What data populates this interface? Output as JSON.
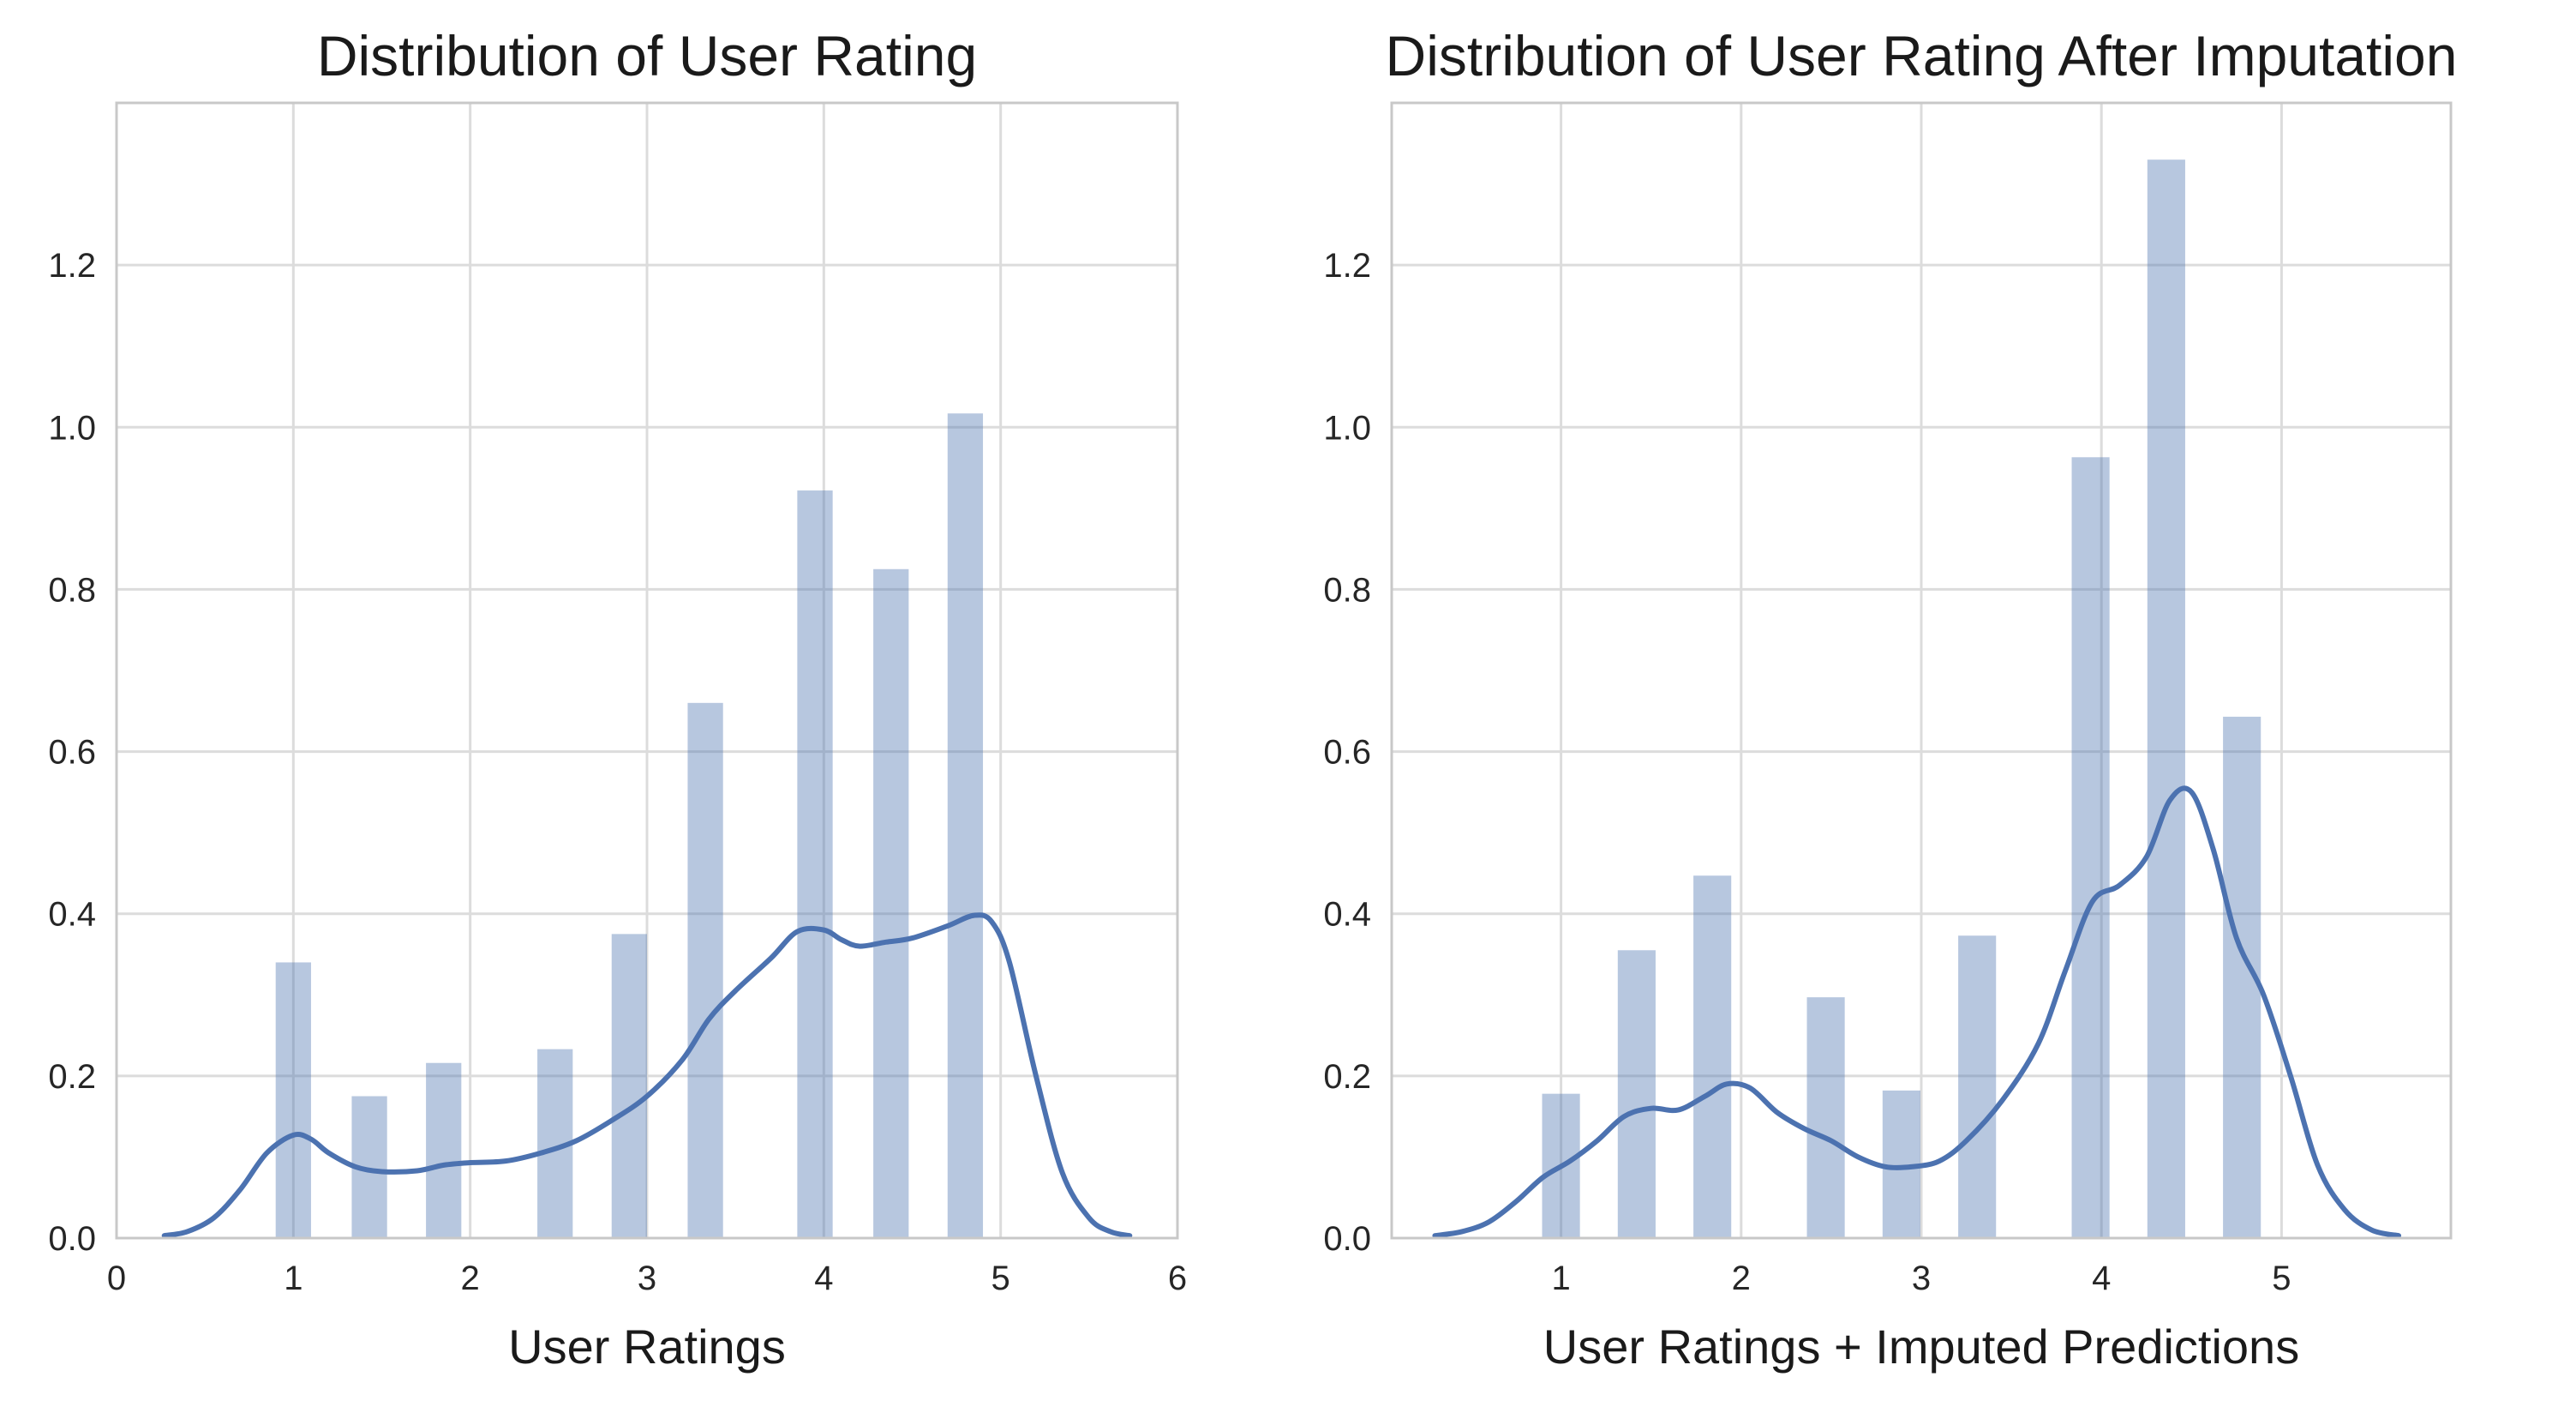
{
  "chart_data": [
    {
      "type": "bar",
      "title": "Distribution of User Rating",
      "xlabel": "User Ratings",
      "ylabel": "",
      "grid": true,
      "xlim": [
        0,
        6
      ],
      "ylim": [
        0,
        1.4
      ],
      "xticks": [
        0,
        1,
        2,
        3,
        4,
        5,
        6
      ],
      "xtick_labels": [
        "0",
        "1",
        "2",
        "3",
        "4",
        "5",
        "6"
      ],
      "yticks": [
        0.0,
        0.2,
        0.4,
        0.6,
        0.8,
        1.0,
        1.2
      ],
      "ytick_labels": [
        "0.0",
        "0.2",
        "0.4",
        "0.6",
        "0.8",
        "1.0",
        "1.2"
      ],
      "bar_width": 0.2,
      "bars": [
        {
          "x": 1.0,
          "value": 0.34
        },
        {
          "x": 1.43,
          "value": 0.175
        },
        {
          "x": 1.85,
          "value": 0.216
        },
        {
          "x": 2.48,
          "value": 0.233
        },
        {
          "x": 2.9,
          "value": 0.375
        },
        {
          "x": 3.33,
          "value": 0.66
        },
        {
          "x": 3.95,
          "value": 0.922
        },
        {
          "x": 4.38,
          "value": 0.825
        },
        {
          "x": 4.8,
          "value": 1.017
        }
      ],
      "kde": {
        "x": [
          0.27,
          0.4,
          0.55,
          0.7,
          0.85,
          1.0,
          1.1,
          1.2,
          1.35,
          1.5,
          1.7,
          1.85,
          2.0,
          2.2,
          2.4,
          2.6,
          2.8,
          3.0,
          3.2,
          3.35,
          3.5,
          3.7,
          3.85,
          4.0,
          4.1,
          4.2,
          4.35,
          4.5,
          4.7,
          4.85,
          4.95,
          5.05,
          5.2,
          5.35,
          5.5,
          5.62,
          5.73
        ],
        "y": [
          0.003,
          0.008,
          0.025,
          0.06,
          0.105,
          0.127,
          0.122,
          0.105,
          0.088,
          0.082,
          0.083,
          0.09,
          0.093,
          0.095,
          0.105,
          0.12,
          0.145,
          0.175,
          0.22,
          0.27,
          0.305,
          0.345,
          0.378,
          0.38,
          0.368,
          0.36,
          0.365,
          0.37,
          0.385,
          0.398,
          0.39,
          0.34,
          0.2,
          0.08,
          0.025,
          0.008,
          0.003
        ]
      }
    },
    {
      "type": "bar",
      "title": "Distribution of User Rating After Imputation",
      "xlabel": "User Ratings + Imputed Predictions",
      "ylabel": "",
      "grid": true,
      "xlim": [
        0.06,
        5.94
      ],
      "ylim": [
        0,
        1.4
      ],
      "xticks": [
        1,
        2,
        3,
        4,
        5
      ],
      "xtick_labels": [
        "1",
        "2",
        "3",
        "4",
        "5"
      ],
      "yticks": [
        0.0,
        0.2,
        0.4,
        0.6,
        0.8,
        1.0,
        1.2
      ],
      "ytick_labels": [
        "0.0",
        "0.2",
        "0.4",
        "0.6",
        "0.8",
        "1.0",
        "1.2"
      ],
      "bar_width": 0.21,
      "bars": [
        {
          "x": 1.0,
          "value": 0.178
        },
        {
          "x": 1.42,
          "value": 0.355
        },
        {
          "x": 1.84,
          "value": 0.447
        },
        {
          "x": 2.47,
          "value": 0.297
        },
        {
          "x": 2.89,
          "value": 0.182
        },
        {
          "x": 3.31,
          "value": 0.373
        },
        {
          "x": 3.94,
          "value": 0.963
        },
        {
          "x": 4.36,
          "value": 1.33
        },
        {
          "x": 4.78,
          "value": 0.643
        }
      ],
      "kde": {
        "x": [
          0.3,
          0.45,
          0.6,
          0.75,
          0.9,
          1.05,
          1.2,
          1.35,
          1.5,
          1.65,
          1.8,
          1.92,
          2.05,
          2.2,
          2.35,
          2.5,
          2.65,
          2.8,
          2.95,
          3.1,
          3.25,
          3.45,
          3.65,
          3.8,
          3.95,
          4.1,
          4.25,
          4.38,
          4.5,
          4.62,
          4.75,
          4.9,
          5.05,
          5.2,
          5.35,
          5.5,
          5.65
        ],
        "y": [
          0.003,
          0.008,
          0.02,
          0.045,
          0.075,
          0.095,
          0.12,
          0.15,
          0.16,
          0.158,
          0.175,
          0.19,
          0.185,
          0.155,
          0.135,
          0.12,
          0.1,
          0.088,
          0.088,
          0.095,
          0.12,
          0.17,
          0.24,
          0.33,
          0.415,
          0.435,
          0.47,
          0.54,
          0.55,
          0.48,
          0.37,
          0.3,
          0.2,
          0.09,
          0.035,
          0.01,
          0.003
        ]
      }
    }
  ]
}
